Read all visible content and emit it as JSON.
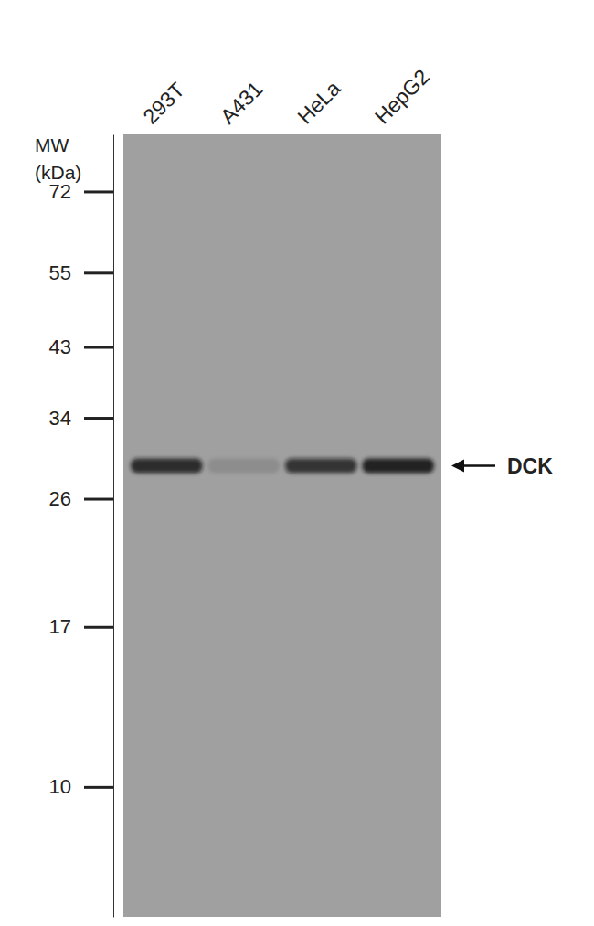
{
  "chart_data": {
    "type": "western_blot",
    "categories": [
      "293T",
      "A431",
      "HeLa",
      "HepG2"
    ],
    "values": [
      29,
      29,
      29,
      29
    ],
    "intensity": [
      0.85,
      0.12,
      0.75,
      0.92
    ],
    "color": "#161616",
    "ylabel": [
      "MW",
      "(kDa)"
    ],
    "ylim": [
      6.5,
      87
    ],
    "yticks": [
      10,
      17,
      26,
      34,
      43,
      55,
      72
    ],
    "log": "y",
    "annotations": [
      {
        "text": "DCK",
        "value": 29
      }
    ]
  }
}
